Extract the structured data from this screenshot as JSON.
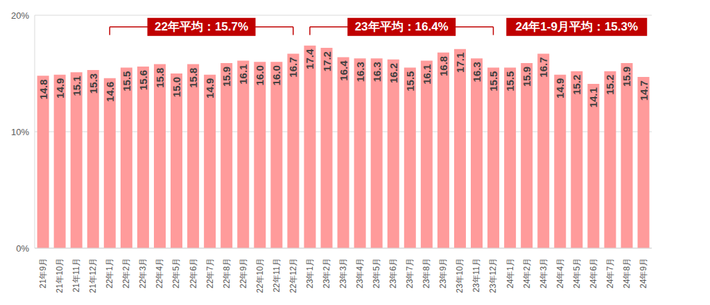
{
  "chart_data": {
    "type": "bar",
    "categories": [
      "21年9月",
      "21年10月",
      "21年11月",
      "21年12月",
      "22年1月",
      "22年2月",
      "22年3月",
      "22年4月",
      "22年5月",
      "22年6月",
      "22年7月",
      "22年8月",
      "22年9月",
      "22年10月",
      "22年11月",
      "22年12月",
      "23年1月",
      "23年2月",
      "23年3月",
      "23年4月",
      "23年5月",
      "23年6月",
      "23年7月",
      "23年8月",
      "23年9月",
      "23年10月",
      "23年11月",
      "23年12月",
      "24年1月",
      "24年2月",
      "24年3月",
      "24年4月",
      "24年5月",
      "24年6月",
      "24年7月",
      "24年8月",
      "24年9月"
    ],
    "values": [
      14.8,
      14.9,
      15.1,
      15.3,
      14.6,
      15.5,
      15.6,
      15.8,
      15.0,
      15.8,
      14.9,
      15.9,
      16.1,
      16.0,
      16.0,
      16.7,
      17.4,
      17.2,
      16.4,
      16.3,
      16.3,
      16.2,
      15.5,
      16.1,
      16.8,
      17.1,
      16.3,
      15.5,
      15.5,
      15.9,
      16.7,
      14.9,
      15.2,
      14.1,
      15.2,
      15.9,
      14.7
    ],
    "value_labels": [
      "14.8",
      "14.9",
      "15.1",
      "15.3",
      "14.6",
      "15.5",
      "15.6",
      "15.8",
      "15.0",
      "15.8",
      "14.9",
      "15.9",
      "16.1",
      "16.0",
      "16.0",
      "16.7",
      "17.4",
      "17.2",
      "16.4",
      "16.3",
      "16.3",
      "16.2",
      "15.5",
      "16.1",
      "16.8",
      "17.1",
      "16.3",
      "15.5",
      "15.5",
      "15.9",
      "16.7",
      "14.9",
      "15.2",
      "14.1",
      "15.2",
      "15.9",
      "14.7"
    ],
    "color": "#ff9b9b",
    "ylim": [
      0,
      20
    ],
    "yticks": [
      {
        "value": 0,
        "label": "0%"
      },
      {
        "value": 10,
        "label": "10%"
      },
      {
        "value": 20,
        "label": "20%"
      }
    ],
    "grid": true,
    "data_labels": true,
    "annotations": [
      {
        "text": "22年平均：15.7%",
        "start": "22年1月",
        "end": "22年12月"
      },
      {
        "text": "23年平均：16.4%",
        "start": "23年1月",
        "end": "23年12月"
      },
      {
        "text": "24年1-9月平均：15.3%",
        "start": "24年1月",
        "end": "24年9月"
      }
    ]
  }
}
